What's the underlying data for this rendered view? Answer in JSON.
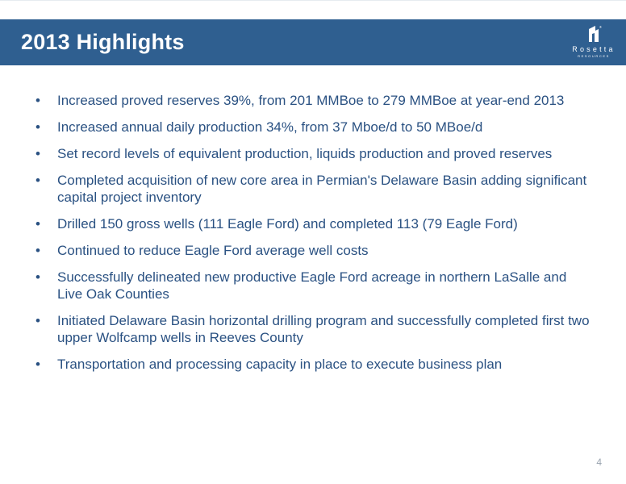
{
  "header": {
    "title": "2013 Highlights",
    "logo": {
      "icon": "rosetta-r-icon",
      "wordmark": "Rosetta",
      "subtitle": "RESOURCES"
    }
  },
  "colors": {
    "header_bar": "#2f5f90",
    "text": "#2a5182",
    "page_number": "#9aa4b0"
  },
  "bullet_symbol": "•",
  "bullets": [
    "Increased proved reserves 39%, from 201 MMBoe to 279 MMBoe at year-end 2013",
    "Increased annual daily production 34%, from 37 Mboe/d to 50 MBoe/d",
    "Set record levels of equivalent production, liquids production and proved reserves",
    "Completed acquisition of new core area in Permian's Delaware Basin adding significant capital project inventory",
    "Drilled 150 gross wells (111 Eagle Ford) and completed 113 (79 Eagle Ford)",
    "Continued to reduce Eagle Ford average well costs",
    "Successfully delineated new productive Eagle Ford acreage in northern LaSalle and Live Oak Counties",
    "Initiated Delaware Basin horizontal drilling program and successfully completed first two upper Wolfcamp wells in Reeves County",
    "Transportation and processing capacity in place to execute business plan"
  ],
  "footer": {
    "page_number": "4"
  }
}
